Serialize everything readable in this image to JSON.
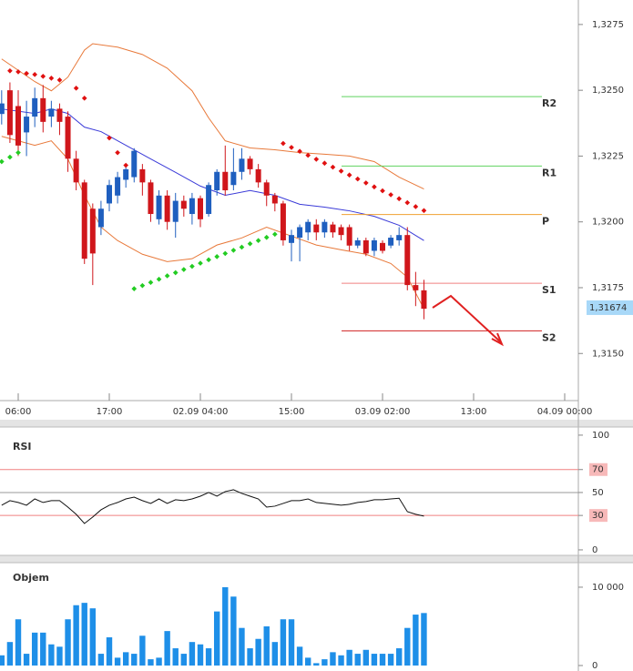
{
  "chart_data": [
    {
      "type": "candlestick",
      "x": [
        -2,
        -1,
        0,
        1,
        2,
        3,
        4,
        5,
        6,
        7,
        8,
        9,
        10,
        11,
        12,
        13,
        14,
        15,
        16,
        17,
        18,
        19,
        20,
        21,
        22,
        23,
        24,
        25,
        26,
        27,
        28,
        29,
        30,
        31,
        32,
        33,
        34,
        35,
        36,
        37,
        38,
        39,
        40,
        41,
        42,
        43,
        44,
        45,
        46,
        47,
        48,
        49
      ],
      "open": [
        1.3241,
        1.325,
        1.3244,
        1.3234,
        1.324,
        1.3247,
        1.324,
        1.3243,
        1.324,
        1.3224,
        1.3215,
        1.3205,
        1.3198,
        1.3207,
        1.321,
        1.3216,
        1.3217,
        1.322,
        1.3215,
        1.3201,
        1.321,
        1.32,
        1.3208,
        1.3203,
        1.3209,
        1.3203,
        1.3212,
        1.3219,
        1.3214,
        1.3219,
        1.3224,
        1.322,
        1.3215,
        1.321,
        1.3207,
        1.3192,
        1.3194,
        1.3196,
        1.3199,
        1.3196,
        1.3199,
        1.3198,
        1.3198,
        1.3191,
        1.3193,
        1.3189,
        1.3192,
        1.3191,
        1.3193,
        1.3195,
        1.3176,
        1.3174
      ],
      "high": [
        1.325,
        1.3253,
        1.325,
        1.3246,
        1.3251,
        1.3252,
        1.3246,
        1.3245,
        1.3242,
        1.3227,
        1.3216,
        1.3207,
        1.3208,
        1.3216,
        1.3219,
        1.3222,
        1.3228,
        1.3222,
        1.3216,
        1.3212,
        1.3212,
        1.3211,
        1.321,
        1.3211,
        1.321,
        1.3215,
        1.322,
        1.3229,
        1.3228,
        1.3228,
        1.3225,
        1.3222,
        1.3216,
        1.3211,
        1.3208,
        1.3197,
        1.3199,
        1.3201,
        1.3201,
        1.3201,
        1.32,
        1.3199,
        1.3199,
        1.3194,
        1.3194,
        1.3194,
        1.3193,
        1.3195,
        1.3198,
        1.3198,
        1.3181,
        1.3178
      ],
      "low": [
        1.3237,
        1.323,
        1.3225,
        1.3225,
        1.3236,
        1.3234,
        1.3236,
        1.3233,
        1.3219,
        1.3212,
        1.3184,
        1.3176,
        1.3195,
        1.3204,
        1.3207,
        1.3213,
        1.3215,
        1.321,
        1.32,
        1.3199,
        1.3197,
        1.3194,
        1.3202,
        1.3199,
        1.3198,
        1.3202,
        1.321,
        1.321,
        1.3212,
        1.3216,
        1.3218,
        1.3213,
        1.3206,
        1.3204,
        1.3191,
        1.3185,
        1.3185,
        1.3193,
        1.3193,
        1.3194,
        1.3194,
        1.3193,
        1.3189,
        1.319,
        1.3187,
        1.3187,
        1.3188,
        1.319,
        1.3191,
        1.3174,
        1.3168,
        1.3163
      ],
      "close": [
        1.3245,
        1.3233,
        1.3229,
        1.324,
        1.3247,
        1.3238,
        1.3243,
        1.3238,
        1.3224,
        1.3215,
        1.3186,
        1.3188,
        1.3205,
        1.3214,
        1.3217,
        1.322,
        1.3227,
        1.3215,
        1.3203,
        1.321,
        1.32,
        1.3208,
        1.3205,
        1.3209,
        1.3201,
        1.3214,
        1.3219,
        1.3212,
        1.3219,
        1.3224,
        1.322,
        1.3215,
        1.321,
        1.3207,
        1.3193,
        1.3195,
        1.3198,
        1.32,
        1.3196,
        1.32,
        1.3196,
        1.3195,
        1.3191,
        1.3193,
        1.3188,
        1.3193,
        1.3189,
        1.3194,
        1.3195,
        1.3176,
        1.3174,
        1.3167
      ],
      "up_color": "#1f5fbf",
      "down_color": "#d0161b",
      "xlim": [
        -2.2,
        67.65
      ],
      "xticks": [
        {
          "value": 0,
          "label": "06:00"
        },
        {
          "value": 11,
          "label": "17:00"
        },
        {
          "value": 22,
          "label": "02.09 04:00"
        },
        {
          "value": 33,
          "label": "15:00"
        },
        {
          "value": 44,
          "label": "03.09 02:00"
        },
        {
          "value": 55,
          "label": "13:00"
        },
        {
          "value": 66,
          "label": "04.09 00:00"
        }
      ],
      "ylim": [
        1.31321,
        1.32843
      ],
      "yticks": [
        {
          "value": 1.315,
          "label": "1,3150"
        },
        {
          "value": 1.3175,
          "label": "1,3175"
        },
        {
          "value": 1.32,
          "label": "1,3200"
        },
        {
          "value": 1.3225,
          "label": "1,3225"
        },
        {
          "value": 1.325,
          "label": "1,3250"
        },
        {
          "value": 1.3275,
          "label": "1,3275"
        }
      ],
      "bands": [
        {
          "color": "#e8793a",
          "x": [
            -2,
            2,
            4,
            6,
            8,
            9,
            12,
            15,
            18,
            21,
            23,
            25,
            28,
            31,
            34,
            37,
            40,
            43,
            46,
            49
          ],
          "values": [
            1.32619,
            1.32533,
            1.32498,
            1.3255,
            1.32653,
            1.32677,
            1.32664,
            1.32636,
            1.32584,
            1.32498,
            1.32395,
            1.32308,
            1.32281,
            1.32274,
            1.32263,
            1.32257,
            1.3225,
            1.32229,
            1.3217,
            1.32125
          ]
        },
        {
          "color": "#3a3ad8",
          "x": [
            -2,
            2,
            4,
            6,
            8,
            10,
            13,
            16,
            19,
            22,
            25,
            28,
            31,
            34,
            37,
            40,
            43,
            46,
            49
          ],
          "values": [
            1.32429,
            1.32412,
            1.32429,
            1.32412,
            1.3236,
            1.32343,
            1.32291,
            1.32239,
            1.32188,
            1.32136,
            1.32101,
            1.32119,
            1.32101,
            1.32067,
            1.32056,
            1.32042,
            1.32021,
            1.31987,
            1.31929
          ]
        },
        {
          "color": "#e8793a",
          "x": [
            -2,
            2,
            4,
            6,
            8,
            10,
            12,
            15,
            18,
            21,
            24,
            27,
            30,
            33,
            36,
            39,
            42,
            45,
            47,
            49
          ],
          "values": [
            1.32325,
            1.32291,
            1.32308,
            1.32239,
            1.32101,
            1.3198,
            1.31929,
            1.31877,
            1.31849,
            1.3186,
            1.31912,
            1.31939,
            1.3198,
            1.31946,
            1.31912,
            1.31894,
            1.31877,
            1.31842,
            1.3179,
            1.3167
          ]
        }
      ],
      "sar": [
        {
          "color": "#22cc22",
          "x": [
            -2,
            -1,
            0
          ],
          "values": [
            1.32229,
            1.32246,
            1.32263
          ]
        },
        {
          "color": "#e01010",
          "x": [
            -1,
            0,
            1,
            2,
            3,
            4,
            5,
            7,
            8,
            11,
            12,
            13
          ],
          "values": [
            1.32574,
            1.3257,
            1.32564,
            1.3256,
            1.32553,
            1.32546,
            1.32539,
            1.32508,
            1.3247,
            1.32319,
            1.32263,
            1.32215
          ]
        },
        {
          "color": "#22cc22",
          "x": [
            14,
            15,
            16,
            17,
            18,
            19,
            20,
            21,
            22,
            23,
            24,
            25,
            26,
            27,
            28,
            29,
            30,
            31
          ],
          "values": [
            1.31746,
            1.31758,
            1.3177,
            1.31782,
            1.31795,
            1.31807,
            1.31819,
            1.31831,
            1.31843,
            1.31856,
            1.31868,
            1.3188,
            1.31892,
            1.31904,
            1.31917,
            1.31929,
            1.31941,
            1.31953
          ]
        },
        {
          "color": "#e01010",
          "x": [
            32,
            33,
            34,
            35,
            36,
            37,
            38,
            39,
            40,
            41,
            42,
            43,
            44,
            45,
            46,
            47,
            48,
            49
          ],
          "values": [
            1.32298,
            1.32283,
            1.32268,
            1.32253,
            1.32238,
            1.32223,
            1.32208,
            1.32193,
            1.32178,
            1.32163,
            1.32148,
            1.32133,
            1.32118,
            1.32103,
            1.32088,
            1.32073,
            1.32058,
            1.32043
          ]
        }
      ],
      "pivots": [
        {
          "name": "R2",
          "value": 1.32476,
          "color": "#5fd35f"
        },
        {
          "name": "R1",
          "value": 1.32212,
          "color": "#5fd35f"
        },
        {
          "name": "P",
          "value": 1.32028,
          "color": "#f0a030"
        },
        {
          "name": "S1",
          "value": 1.31767,
          "color": "#f08080"
        },
        {
          "name": "S2",
          "value": 1.31586,
          "color": "#d02020"
        }
      ],
      "last_price": {
        "value": 1.31674,
        "label": "1,31674",
        "color": "#a8d8f8"
      }
    },
    {
      "type": "line",
      "title": "RSI",
      "x": [
        -2,
        -1,
        0,
        1,
        2,
        3,
        4,
        5,
        6,
        7,
        8,
        9,
        10,
        11,
        12,
        13,
        14,
        15,
        16,
        17,
        18,
        19,
        20,
        21,
        22,
        23,
        24,
        25,
        26,
        27,
        28,
        29,
        30,
        31,
        32,
        33,
        34,
        35,
        36,
        37,
        38,
        39,
        40,
        41,
        42,
        43,
        44,
        45,
        46,
        47,
        48,
        49
      ],
      "values": [
        38.9,
        42.9,
        41.3,
        38.9,
        44.4,
        41.3,
        42.9,
        42.9,
        37.3,
        31.0,
        23.0,
        28.6,
        34.9,
        38.9,
        41.3,
        44.4,
        46.0,
        42.9,
        40.5,
        44.4,
        40.5,
        43.7,
        42.9,
        44.4,
        46.8,
        50.0,
        46.8,
        50.8,
        52.4,
        49.2,
        46.8,
        44.4,
        37.3,
        38.1,
        40.5,
        42.9,
        42.9,
        44.4,
        41.3,
        40.5,
        39.7,
        38.9,
        39.7,
        41.3,
        42.1,
        43.7,
        43.7,
        44.4,
        45.0,
        33.3,
        31.0,
        29.4
      ],
      "color": "#111111",
      "xlim": [
        -2.2,
        67.65
      ],
      "ylim": [
        -4.8,
        106.3
      ],
      "yticks": [
        0,
        30,
        50,
        70,
        100
      ],
      "levels": [
        {
          "value": 70,
          "color": "#f08080"
        },
        {
          "value": 50,
          "color": "#999999"
        },
        {
          "value": 30,
          "color": "#f08080"
        }
      ]
    },
    {
      "type": "bar",
      "title": "Objem",
      "x": [
        -2,
        -1,
        0,
        1,
        2,
        3,
        4,
        5,
        6,
        7,
        8,
        9,
        10,
        11,
        12,
        13,
        14,
        15,
        16,
        17,
        18,
        19,
        20,
        21,
        22,
        23,
        24,
        25,
        26,
        27,
        28,
        29,
        30,
        31,
        32,
        33,
        34,
        35,
        36,
        37,
        38,
        39,
        40,
        41,
        42,
        43,
        44,
        45,
        46,
        47,
        48,
        49
      ],
      "values": [
        1300,
        3000,
        5900,
        1500,
        4200,
        4200,
        2700,
        2400,
        5900,
        7700,
        8000,
        7300,
        1500,
        3600,
        1000,
        1700,
        1500,
        3800,
        800,
        1000,
        4400,
        2200,
        1500,
        3000,
        2700,
        2200,
        6900,
        10000,
        8800,
        4800,
        2200,
        3400,
        5000,
        3000,
        5900,
        5900,
        2400,
        1000,
        300,
        800,
        1700,
        1300,
        2000,
        1500,
        2000,
        1500,
        1500,
        1500,
        2200,
        4800,
        6500,
        6700
      ],
      "color": "#1e8fe8",
      "xlim": [
        -2.2,
        67.65
      ],
      "ylim": [
        -700,
        12900
      ],
      "yticks": [
        0,
        {
          "value": 10000,
          "label": "10 000"
        }
      ]
    }
  ]
}
